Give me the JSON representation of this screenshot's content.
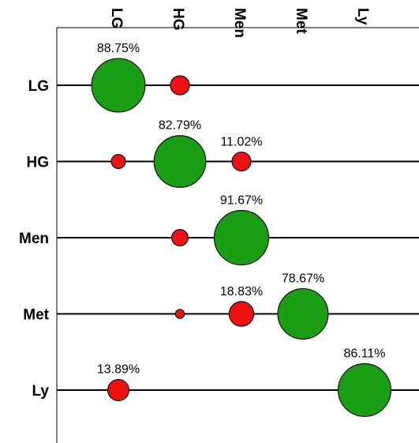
{
  "chart_data": {
    "type": "bubble-matrix",
    "title": "",
    "x_categories": [
      "LG",
      "HG",
      "Men",
      "Met",
      "Ly"
    ],
    "y_categories": [
      "LG",
      "HG",
      "Men",
      "Met",
      "Ly"
    ],
    "colors": {
      "diagonal": "#1a9e14",
      "off_diagonal": "#ee1111",
      "stroke": "#111111"
    },
    "points": [
      {
        "row": "LG",
        "col": "LG",
        "value": 88.75,
        "label": "88.75%"
      },
      {
        "row": "LG",
        "col": "HG",
        "value": 11.25,
        "label": ""
      },
      {
        "row": "HG",
        "col": "LG",
        "value": 6.19,
        "label": ""
      },
      {
        "row": "HG",
        "col": "HG",
        "value": 82.79,
        "label": "82.79%"
      },
      {
        "row": "HG",
        "col": "Men",
        "value": 11.02,
        "label": "11.02%"
      },
      {
        "row": "Men",
        "col": "HG",
        "value": 8.33,
        "label": ""
      },
      {
        "row": "Men",
        "col": "Men",
        "value": 91.67,
        "label": "91.67%"
      },
      {
        "row": "Met",
        "col": "HG",
        "value": 2.5,
        "label": ""
      },
      {
        "row": "Met",
        "col": "Men",
        "value": 18.83,
        "label": "18.83%"
      },
      {
        "row": "Met",
        "col": "Met",
        "value": 78.67,
        "label": "78.67%"
      },
      {
        "row": "Ly",
        "col": "LG",
        "value": 13.89,
        "label": "13.89%"
      },
      {
        "row": "Ly",
        "col": "Ly",
        "value": 86.11,
        "label": "86.11%"
      }
    ]
  }
}
